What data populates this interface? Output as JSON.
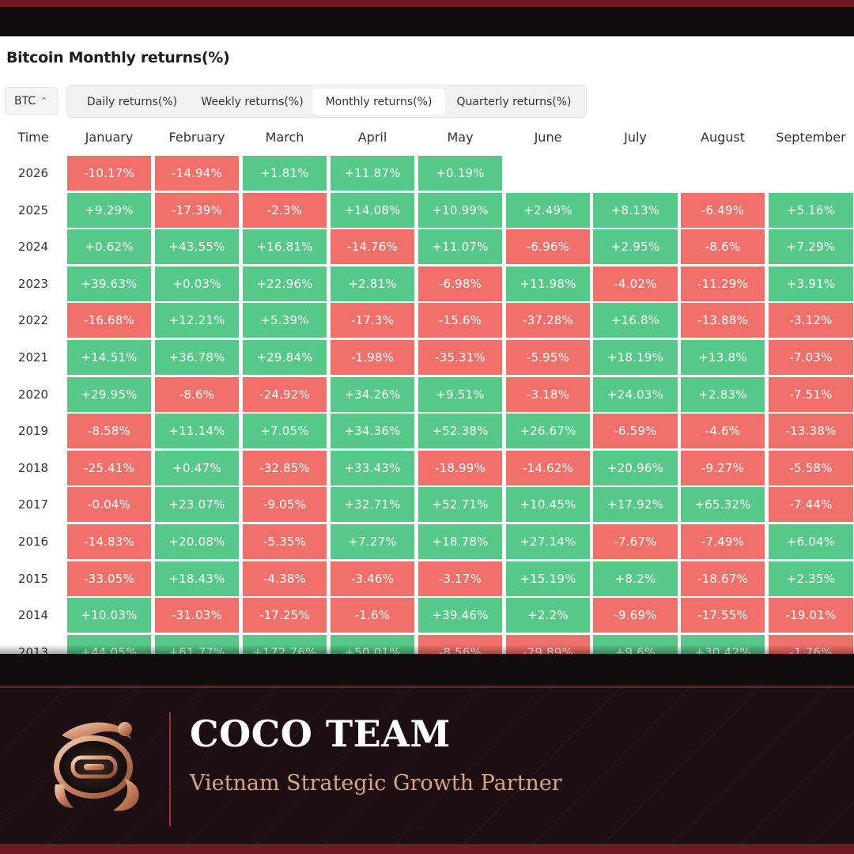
{
  "page": {
    "title": "Bitcoin Monthly returns(%)",
    "asset": "BTC"
  },
  "tabs": [
    {
      "label": "Daily returns(%)",
      "active": false
    },
    {
      "label": "Weekly returns(%)",
      "active": false
    },
    {
      "label": "Monthly returns(%)",
      "active": true
    },
    {
      "label": "Quarterly returns(%)",
      "active": false
    }
  ],
  "table": {
    "headers": [
      "Time",
      "January",
      "February",
      "March",
      "April",
      "May",
      "June",
      "July",
      "August",
      "September"
    ],
    "rows": [
      {
        "year": "2026",
        "values": [
          "-10.17%",
          "-14.94%",
          "+1.81%",
          "+11.87%",
          "+0.19%",
          "",
          "",
          "",
          ""
        ]
      },
      {
        "year": "2025",
        "values": [
          "+9.29%",
          "-17.39%",
          "-2.3%",
          "+14.08%",
          "+10.99%",
          "+2.49%",
          "+8.13%",
          "-6.49%",
          "+5.16%"
        ]
      },
      {
        "year": "2024",
        "values": [
          "+0.62%",
          "+43.55%",
          "+16.81%",
          "-14.76%",
          "+11.07%",
          "-6.96%",
          "+2.95%",
          "-8.6%",
          "+7.29%"
        ]
      },
      {
        "year": "2023",
        "values": [
          "+39.63%",
          "+0.03%",
          "+22.96%",
          "+2.81%",
          "-6.98%",
          "+11.98%",
          "-4.02%",
          "-11.29%",
          "+3.91%"
        ]
      },
      {
        "year": "2022",
        "values": [
          "-16.68%",
          "+12.21%",
          "+5.39%",
          "-17.3%",
          "-15.6%",
          "-37.28%",
          "+16.8%",
          "-13.88%",
          "-3.12%"
        ]
      },
      {
        "year": "2021",
        "values": [
          "+14.51%",
          "+36.78%",
          "+29.84%",
          "-1.98%",
          "-35.31%",
          "-5.95%",
          "+18.19%",
          "+13.8%",
          "-7.03%"
        ]
      },
      {
        "year": "2020",
        "values": [
          "+29.95%",
          "-8.6%",
          "-24.92%",
          "+34.26%",
          "+9.51%",
          "-3.18%",
          "+24.03%",
          "+2.83%",
          "-7.51%"
        ]
      },
      {
        "year": "2019",
        "values": [
          "-8.58%",
          "+11.14%",
          "+7.05%",
          "+34.36%",
          "+52.38%",
          "+26.67%",
          "-6.59%",
          "-4.6%",
          "-13.38%"
        ]
      },
      {
        "year": "2018",
        "values": [
          "-25.41%",
          "+0.47%",
          "-32.85%",
          "+33.43%",
          "-18.99%",
          "-14.62%",
          "+20.96%",
          "-9.27%",
          "-5.58%"
        ]
      },
      {
        "year": "2017",
        "values": [
          "-0.04%",
          "+23.07%",
          "-9.05%",
          "+32.71%",
          "+52.71%",
          "+10.45%",
          "+17.92%",
          "+65.32%",
          "-7.44%"
        ]
      },
      {
        "year": "2016",
        "values": [
          "-14.83%",
          "+20.08%",
          "-5.35%",
          "+7.27%",
          "+18.78%",
          "+27.14%",
          "-7.67%",
          "-7.49%",
          "+6.04%"
        ]
      },
      {
        "year": "2015",
        "values": [
          "-33.05%",
          "+18.43%",
          "-4.38%",
          "-3.46%",
          "-3.17%",
          "+15.19%",
          "+8.2%",
          "-18.67%",
          "+2.35%"
        ]
      },
      {
        "year": "2014",
        "values": [
          "+10.03%",
          "-31.03%",
          "-17.25%",
          "-1.6%",
          "+39.46%",
          "+2.2%",
          "-9.69%",
          "-17.55%",
          "-19.01%"
        ]
      },
      {
        "year": "2013",
        "values": [
          "+44.05%",
          "+61.77%",
          "+172.76%",
          "+50.01%",
          "-8.56%",
          "-29.89%",
          "+9.6%",
          "+30.42%",
          "-1.76%"
        ]
      }
    ]
  },
  "colors": {
    "positive": "#56c887",
    "negative": "#f2706a",
    "brand_red": "#6e1826",
    "accent_gold": "#d9a47e"
  },
  "icons": {
    "asset_select": "updown-chevron-icon",
    "logo": "coco-team-logo"
  },
  "brand": {
    "name": "COCO TEAM",
    "tagline": "Vietnam Strategic Growth Partner"
  }
}
